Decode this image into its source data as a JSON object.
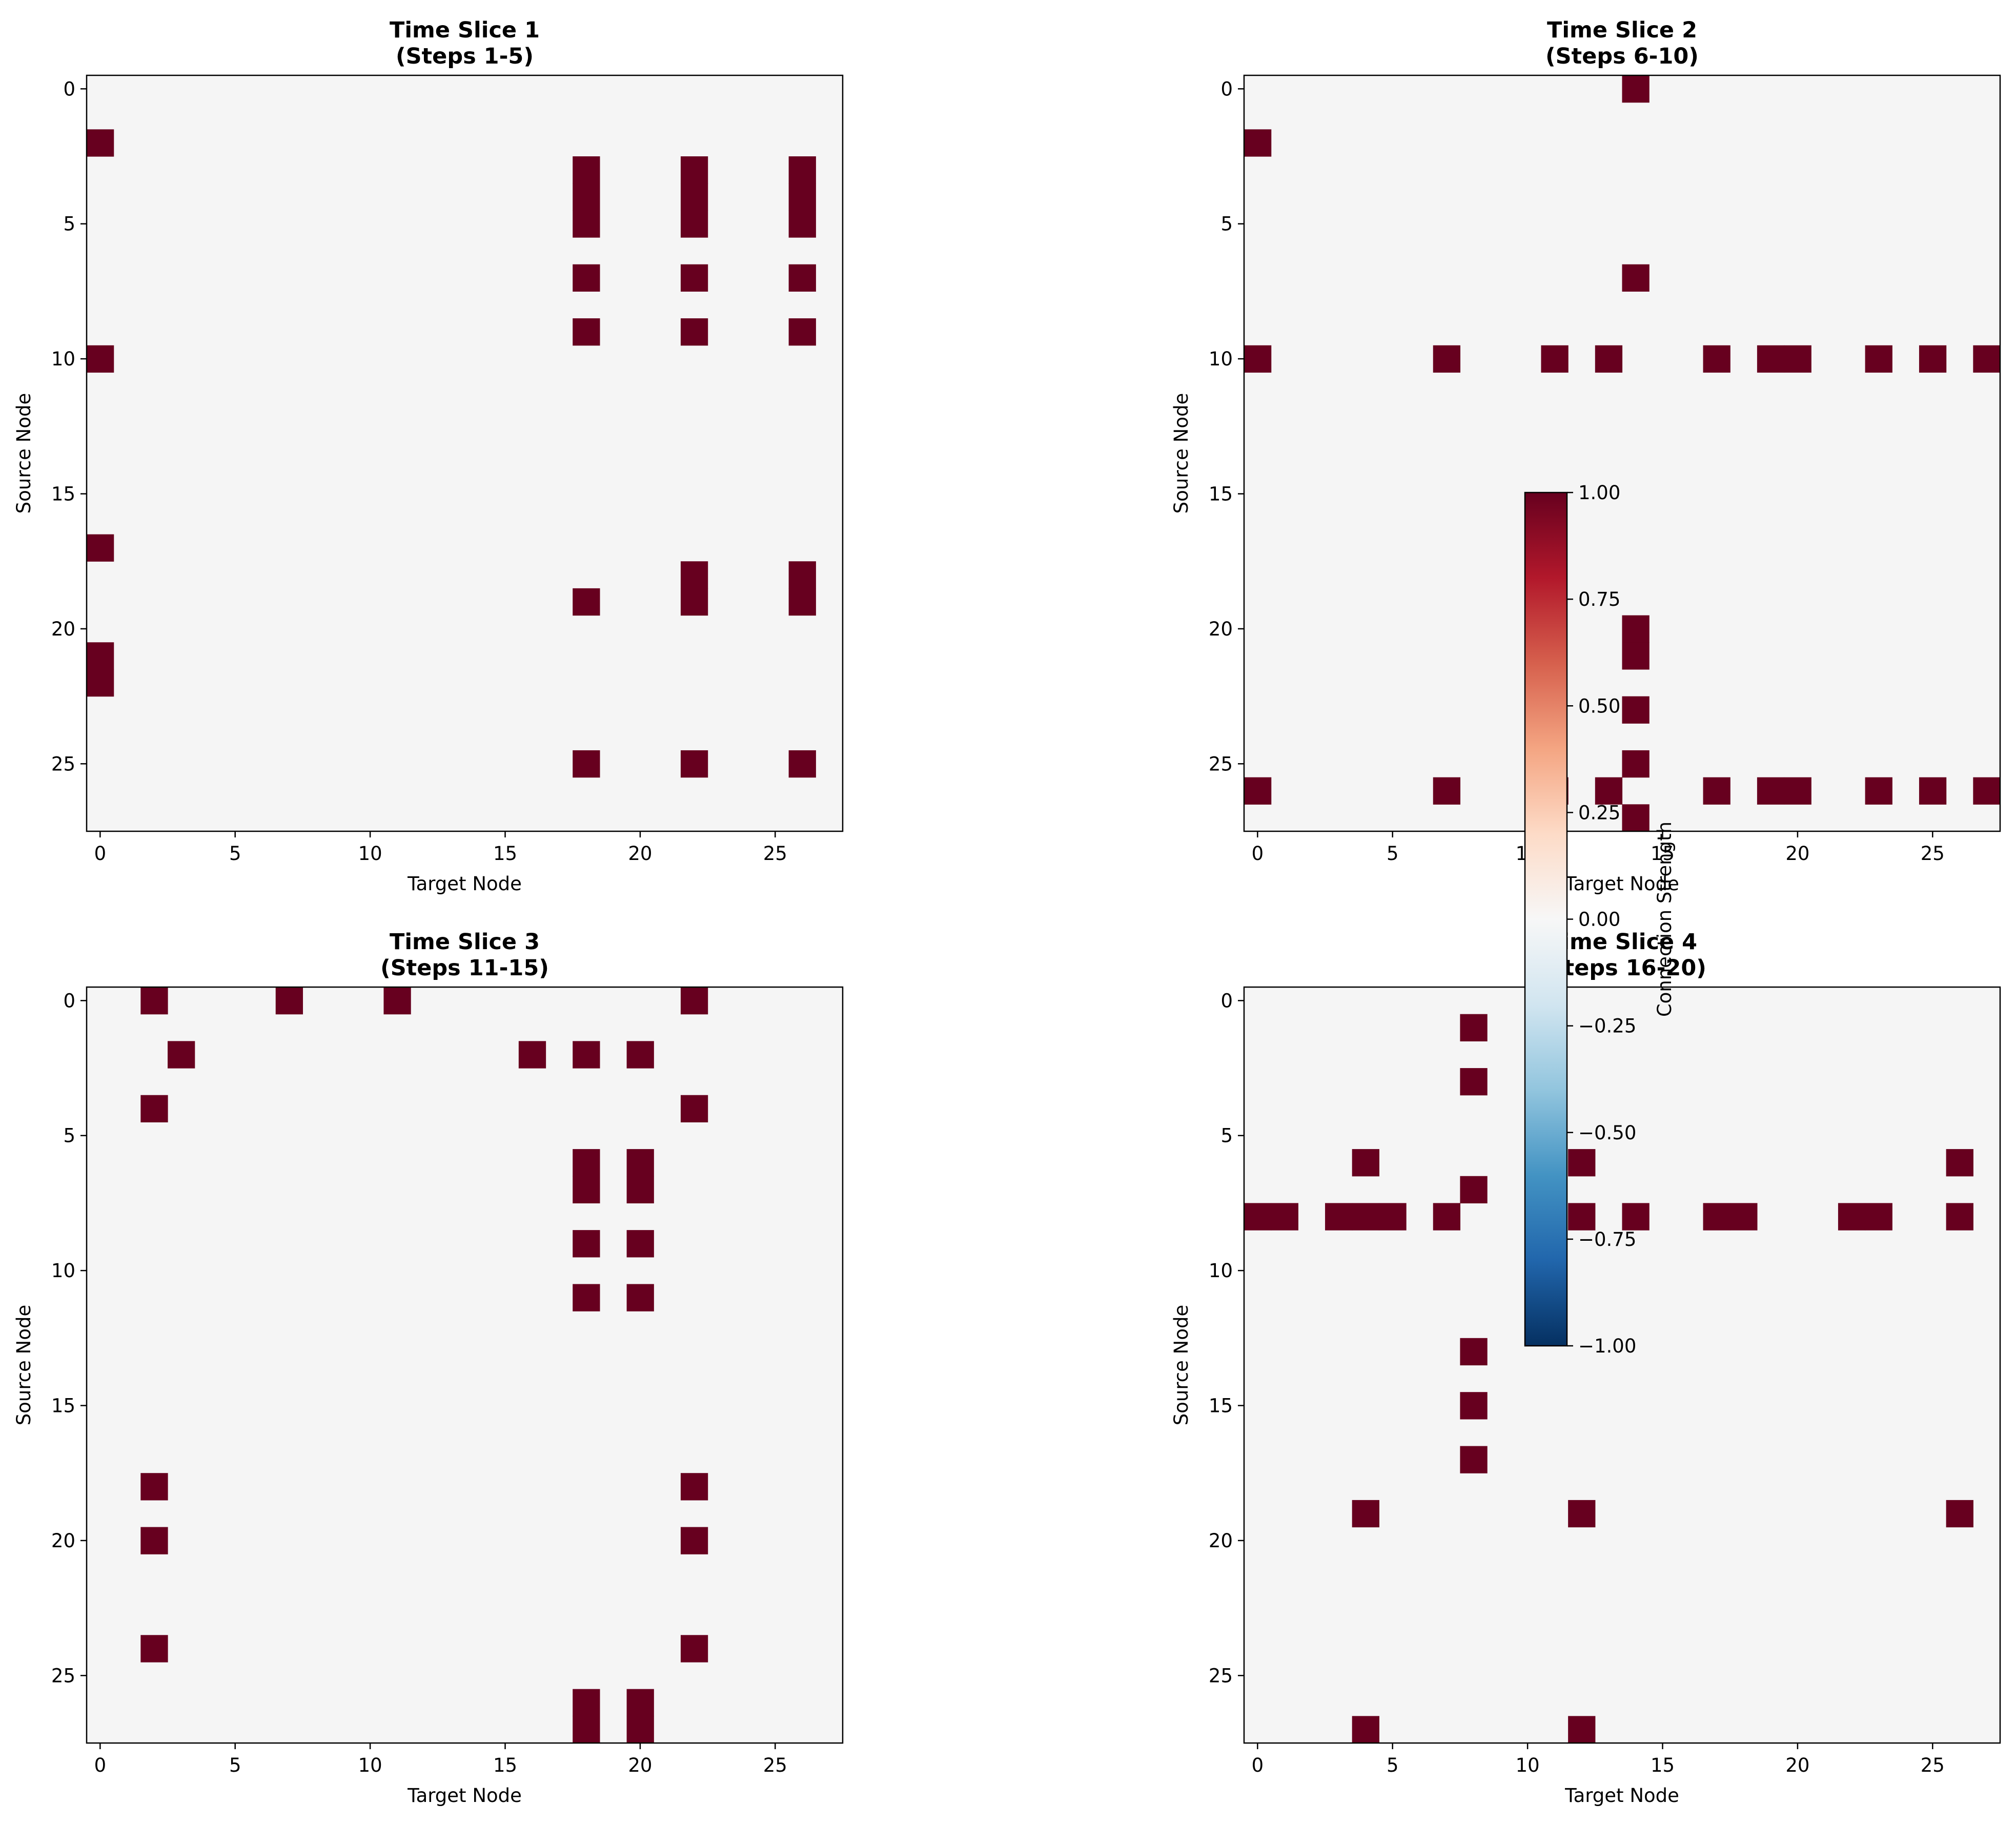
{
  "colors": {
    "background": "#f5f5f5",
    "cell_on": "#67001f",
    "colormap": "RdBu_r"
  },
  "chart_data": [
    {
      "type": "heatmap",
      "title": "Time Slice 1\n(Steps 1-5)",
      "xlabel": "Target Node",
      "ylabel": "Source Node",
      "n": 28,
      "xticks": [
        0,
        5,
        10,
        15,
        20,
        25
      ],
      "yticks": [
        0,
        5,
        10,
        15,
        20,
        25
      ],
      "nonzero_value": 1,
      "cells": [
        [
          2,
          0
        ],
        [
          10,
          0
        ],
        [
          17,
          0
        ],
        [
          21,
          0
        ],
        [
          22,
          0
        ],
        [
          3,
          18
        ],
        [
          4,
          18
        ],
        [
          5,
          18
        ],
        [
          7,
          18
        ],
        [
          9,
          18
        ],
        [
          19,
          18
        ],
        [
          25,
          18
        ],
        [
          3,
          22
        ],
        [
          4,
          22
        ],
        [
          5,
          22
        ],
        [
          7,
          22
        ],
        [
          9,
          22
        ],
        [
          18,
          22
        ],
        [
          19,
          22
        ],
        [
          25,
          22
        ],
        [
          3,
          26
        ],
        [
          4,
          26
        ],
        [
          5,
          26
        ],
        [
          7,
          26
        ],
        [
          9,
          26
        ],
        [
          18,
          26
        ],
        [
          19,
          26
        ],
        [
          25,
          26
        ]
      ]
    },
    {
      "type": "heatmap",
      "title": "Time Slice 2\n(Steps 6-10)",
      "xlabel": "Target Node",
      "ylabel": "Source Node",
      "n": 28,
      "xticks": [
        0,
        5,
        10,
        15,
        20,
        25
      ],
      "yticks": [
        0,
        5,
        10,
        15,
        20,
        25
      ],
      "nonzero_value": 1,
      "cells": [
        [
          0,
          14
        ],
        [
          2,
          0
        ],
        [
          7,
          14
        ],
        [
          10,
          0
        ],
        [
          10,
          7
        ],
        [
          10,
          11
        ],
        [
          10,
          13
        ],
        [
          10,
          17
        ],
        [
          10,
          19
        ],
        [
          10,
          20
        ],
        [
          10,
          23
        ],
        [
          10,
          25
        ],
        [
          10,
          27
        ],
        [
          20,
          14
        ],
        [
          21,
          14
        ],
        [
          23,
          14
        ],
        [
          25,
          14
        ],
        [
          27,
          14
        ],
        [
          26,
          0
        ],
        [
          26,
          7
        ],
        [
          26,
          11
        ],
        [
          26,
          13
        ],
        [
          26,
          17
        ],
        [
          26,
          19
        ],
        [
          26,
          20
        ],
        [
          26,
          23
        ],
        [
          26,
          25
        ],
        [
          26,
          27
        ]
      ]
    },
    {
      "type": "heatmap",
      "title": "Time Slice 3\n(Steps 11-15)",
      "xlabel": "Target Node",
      "ylabel": "Source Node",
      "n": 28,
      "xticks": [
        0,
        5,
        10,
        15,
        20,
        25
      ],
      "yticks": [
        0,
        5,
        10,
        15,
        20,
        25
      ],
      "nonzero_value": 1,
      "cells": [
        [
          0,
          2
        ],
        [
          0,
          7
        ],
        [
          0,
          11
        ],
        [
          0,
          22
        ],
        [
          2,
          3
        ],
        [
          2,
          16
        ],
        [
          2,
          18
        ],
        [
          2,
          20
        ],
        [
          4,
          2
        ],
        [
          4,
          22
        ],
        [
          6,
          18
        ],
        [
          7,
          18
        ],
        [
          6,
          20
        ],
        [
          7,
          20
        ],
        [
          9,
          18
        ],
        [
          9,
          20
        ],
        [
          11,
          18
        ],
        [
          11,
          20
        ],
        [
          18,
          2
        ],
        [
          18,
          22
        ],
        [
          20,
          2
        ],
        [
          20,
          22
        ],
        [
          24,
          2
        ],
        [
          24,
          22
        ],
        [
          26,
          18
        ],
        [
          27,
          18
        ],
        [
          26,
          20
        ],
        [
          27,
          20
        ]
      ]
    },
    {
      "type": "heatmap",
      "title": "Time Slice 4\n(Steps 16-20)",
      "xlabel": "Target Node",
      "ylabel": "Source Node",
      "n": 28,
      "xticks": [
        0,
        5,
        10,
        15,
        20,
        25
      ],
      "yticks": [
        0,
        5,
        10,
        15,
        20,
        25
      ],
      "nonzero_value": 1,
      "cells": [
        [
          1,
          8
        ],
        [
          3,
          8
        ],
        [
          6,
          4
        ],
        [
          6,
          12
        ],
        [
          6,
          26
        ],
        [
          7,
          8
        ],
        [
          8,
          0
        ],
        [
          8,
          1
        ],
        [
          8,
          3
        ],
        [
          8,
          4
        ],
        [
          8,
          5
        ],
        [
          8,
          7
        ],
        [
          8,
          12
        ],
        [
          8,
          14
        ],
        [
          8,
          17
        ],
        [
          8,
          18
        ],
        [
          8,
          22
        ],
        [
          8,
          23
        ],
        [
          8,
          26
        ],
        [
          13,
          8
        ],
        [
          15,
          8
        ],
        [
          17,
          8
        ],
        [
          19,
          4
        ],
        [
          19,
          12
        ],
        [
          19,
          26
        ],
        [
          27,
          4
        ],
        [
          27,
          12
        ]
      ]
    }
  ],
  "colorbar": {
    "label": "Connection Strength",
    "vmin": -1.0,
    "vmax": 1.0,
    "ticks": [
      "1.00",
      "0.75",
      "0.50",
      "0.25",
      "0.00",
      "−0.25",
      "−0.50",
      "−0.75",
      "−1.00"
    ]
  }
}
